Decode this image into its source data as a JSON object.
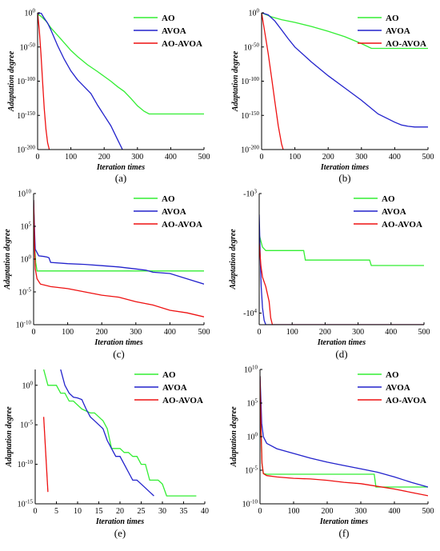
{
  "chart_data": [
    {
      "panel": "a",
      "type": "line",
      "caption": "(a)",
      "xlabel": "Iteration times",
      "ylabel": "Adaptation degree",
      "xlim": [
        0,
        500
      ],
      "ylim": [
        -200,
        0
      ],
      "yscale": "log10",
      "xticks": [
        0,
        100,
        200,
        300,
        400,
        500
      ],
      "yticks": [
        {
          "v": 0,
          "t": "10^0"
        },
        {
          "v": -50,
          "t": "10^-50"
        },
        {
          "v": -100,
          "t": "10^-100"
        },
        {
          "v": -150,
          "t": "10^-150"
        },
        {
          "v": -200,
          "t": "10^-200"
        }
      ],
      "legend_position": "top-right",
      "grid": false,
      "series": [
        {
          "name": "AO",
          "color": "#33ee33",
          "x": [
            0,
            10,
            25,
            40,
            60,
            80,
            100,
            120,
            150,
            180,
            200,
            220,
            240,
            260,
            280,
            300,
            320,
            335,
            500
          ],
          "y": [
            -2,
            -5,
            -12,
            -22,
            -33,
            -44,
            -55,
            -64,
            -76,
            -86,
            -93,
            -100,
            -108,
            -115,
            -125,
            -136,
            -144,
            -148,
            -148
          ]
        },
        {
          "name": "AVOA",
          "color": "#2222cc",
          "x": [
            0,
            10,
            20,
            30,
            40,
            60,
            80,
            100,
            120,
            140,
            160,
            180,
            200,
            220,
            240,
            255
          ],
          "y": [
            -2,
            0,
            -8,
            -15,
            -25,
            -48,
            -68,
            -85,
            -98,
            -108,
            -118,
            -135,
            -150,
            -165,
            -185,
            -200
          ]
        },
        {
          "name": "AO-AVOA",
          "color": "#ee1111",
          "x": [
            0,
            5,
            10,
            15,
            20,
            25,
            30,
            35
          ],
          "y": [
            0,
            -25,
            -60,
            -100,
            -140,
            -170,
            -190,
            -200
          ]
        }
      ]
    },
    {
      "panel": "b",
      "type": "line",
      "caption": "(b)",
      "xlabel": "Iteration times",
      "ylabel": "Adaptation degree",
      "xlim": [
        0,
        500
      ],
      "ylim": [
        -200,
        0
      ],
      "yscale": "log10",
      "xticks": [
        0,
        100,
        200,
        300,
        400,
        500
      ],
      "yticks": [
        {
          "v": 0,
          "t": "10^0"
        },
        {
          "v": -50,
          "t": "10^-50"
        },
        {
          "v": -100,
          "t": "10^-100"
        },
        {
          "v": -150,
          "t": "10^-150"
        },
        {
          "v": -200,
          "t": "10^-200"
        }
      ],
      "legend_position": "top-right",
      "grid": false,
      "series": [
        {
          "name": "AO",
          "color": "#33ee33",
          "x": [
            0,
            30,
            60,
            100,
            150,
            200,
            250,
            300,
            330,
            500
          ],
          "y": [
            0,
            -6,
            -10,
            -14,
            -20,
            -27,
            -35,
            -45,
            -52,
            -52
          ]
        },
        {
          "name": "AVOA",
          "color": "#2222cc",
          "x": [
            0,
            20,
            40,
            60,
            80,
            100,
            150,
            200,
            250,
            300,
            350,
            400,
            420,
            440,
            460,
            500
          ],
          "y": [
            0,
            -3,
            -12,
            -25,
            -38,
            -50,
            -72,
            -92,
            -110,
            -128,
            -148,
            -160,
            -164,
            -166,
            -167,
            -167
          ]
        },
        {
          "name": "AO-AVOA",
          "color": "#ee1111",
          "x": [
            0,
            10,
            20,
            30,
            40,
            50,
            60,
            65
          ],
          "y": [
            0,
            -30,
            -60,
            -95,
            -130,
            -165,
            -192,
            -200
          ]
        }
      ]
    },
    {
      "panel": "c",
      "type": "line",
      "caption": "(c)",
      "xlabel": "Iteration times",
      "ylabel": "Adaptation degree",
      "xlim": [
        0,
        500
      ],
      "ylim": [
        -10,
        10
      ],
      "yscale": "log10",
      "xticks": [
        0,
        100,
        200,
        300,
        400,
        500
      ],
      "yticks": [
        {
          "v": 10,
          "t": "10^10"
        },
        {
          "v": 5,
          "t": "10^5"
        },
        {
          "v": 0,
          "t": "10^0"
        },
        {
          "v": -5,
          "t": "10^-5"
        },
        {
          "v": -10,
          "t": "10^-10"
        }
      ],
      "legend_position": "top-right",
      "grid": false,
      "series": [
        {
          "name": "AO",
          "color": "#33ee33",
          "x": [
            0,
            3,
            6,
            10,
            20,
            500
          ],
          "y": [
            9,
            2,
            -0.5,
            -1.8,
            -1.8,
            -1.8
          ]
        },
        {
          "name": "AVOA",
          "color": "#2222cc",
          "x": [
            0,
            3,
            5,
            10,
            15,
            30,
            40,
            45,
            50,
            100,
            150,
            200,
            250,
            300,
            330,
            350,
            400,
            450,
            500
          ],
          "y": [
            9,
            4,
            1.5,
            1,
            0.5,
            0.4,
            0.3,
            0.2,
            -0.5,
            -0.7,
            -0.8,
            -1,
            -1.2,
            -1.5,
            -1.7,
            -2,
            -2.2,
            -3,
            -3.8
          ]
        },
        {
          "name": "AO-AVOA",
          "color": "#ee1111",
          "x": [
            0,
            3,
            5,
            10,
            20,
            50,
            100,
            150,
            200,
            250,
            300,
            350,
            400,
            450,
            500
          ],
          "y": [
            9,
            1.5,
            -1.5,
            -3,
            -3.8,
            -4.2,
            -4.5,
            -5,
            -5.5,
            -5.8,
            -6.5,
            -7,
            -7.8,
            -8.2,
            -8.8
          ]
        }
      ]
    },
    {
      "panel": "d",
      "type": "line",
      "caption": "(d)",
      "xlabel": "Iteration times",
      "ylabel": "Adaptation degree",
      "xlim": [
        0,
        500
      ],
      "ylim": [
        -1000,
        -12500
      ],
      "yscale": "symlog",
      "xticks": [
        0,
        100,
        200,
        300,
        400,
        500
      ],
      "yticks": [
        {
          "v": -1000,
          "t": "-10^3"
        },
        {
          "v": -10000,
          "t": "-10^4"
        }
      ],
      "legend_position": "top-right",
      "grid": false,
      "series": [
        {
          "name": "AO",
          "color": "#33ee33",
          "x": [
            0,
            5,
            10,
            20,
            135,
            140,
            335,
            340,
            500
          ],
          "y": [
            -2200,
            -2500,
            -2800,
            -3000,
            -3000,
            -3600,
            -3600,
            -4000,
            -4000
          ]
        },
        {
          "name": "AVOA",
          "color": "#2222cc",
          "x": [
            0,
            2,
            4,
            6,
            10,
            15,
            20,
            500
          ],
          "y": [
            -1500,
            -2500,
            -4000,
            -6000,
            -9000,
            -11500,
            -12500,
            -12500
          ]
        },
        {
          "name": "AO-AVOA",
          "color": "#ee1111",
          "x": [
            0,
            5,
            10,
            20,
            30,
            35,
            40,
            500
          ],
          "y": [
            -2600,
            -4000,
            -5000,
            -6000,
            -8000,
            -11000,
            -12500,
            -12500
          ]
        }
      ]
    },
    {
      "panel": "e",
      "type": "line",
      "caption": "(e)",
      "xlabel": "Iteration times",
      "ylabel": "Adaptation degree",
      "xlim": [
        0,
        40
      ],
      "ylim": [
        -15,
        2
      ],
      "yscale": "log10",
      "xticks": [
        0,
        5,
        10,
        15,
        20,
        25,
        30,
        35,
        40
      ],
      "yticks": [
        {
          "v": 0,
          "t": "10^0"
        },
        {
          "v": -5,
          "t": "10^-5"
        },
        {
          "v": -10,
          "t": "10^-10"
        },
        {
          "v": -15,
          "t": "10^-15"
        }
      ],
      "legend_position": "top-right",
      "grid": false,
      "series": [
        {
          "name": "AO",
          "color": "#33ee33",
          "x": [
            2,
            3,
            5,
            6,
            7,
            8,
            9,
            10,
            11,
            13,
            14,
            15,
            16,
            17,
            18,
            20,
            21,
            22,
            23,
            24,
            25,
            26,
            27,
            29,
            30,
            31,
            35,
            38
          ],
          "y": [
            2,
            0,
            0,
            -1,
            -1,
            -2,
            -2,
            -2.5,
            -3,
            -3.5,
            -3.5,
            -4,
            -4.5,
            -5.5,
            -8,
            -8,
            -8.5,
            -8.5,
            -9,
            -9,
            -10,
            -10,
            -12,
            -12,
            -12.5,
            -14,
            -14,
            -14
          ]
        },
        {
          "name": "AVOA",
          "color": "#2222cc",
          "x": [
            6,
            7,
            8,
            9,
            10,
            11,
            12,
            13,
            14,
            15,
            16,
            17,
            18,
            19,
            20,
            21,
            22,
            23,
            24,
            25,
            26,
            27,
            28
          ],
          "y": [
            2,
            0,
            -1,
            -1.5,
            -1.6,
            -1.8,
            -3,
            -4,
            -4.5,
            -5,
            -5.5,
            -7,
            -8,
            -9,
            -9,
            -10,
            -11,
            -12,
            -12,
            -12.5,
            -13,
            -13.5,
            -14
          ]
        },
        {
          "name": "AO-AVOA",
          "color": "#ee1111",
          "x": [
            2,
            3
          ],
          "y": [
            -4,
            -13.5
          ]
        }
      ]
    },
    {
      "panel": "f",
      "type": "line",
      "caption": "(f)",
      "xlabel": "Iteration times",
      "ylabel": "Adaptation degree",
      "xlim": [
        0,
        500
      ],
      "ylim": [
        -10,
        10
      ],
      "yscale": "log10",
      "xticks": [
        0,
        100,
        200,
        300,
        400,
        500
      ],
      "yticks": [
        {
          "v": 10,
          "t": "10^10"
        },
        {
          "v": 5,
          "t": "10^5"
        },
        {
          "v": 0,
          "t": "10^0"
        },
        {
          "v": -5,
          "t": "10^-5"
        },
        {
          "v": -10,
          "t": "10^-10"
        }
      ],
      "legend_position": "top-right",
      "grid": false,
      "series": [
        {
          "name": "AO",
          "color": "#33ee33",
          "x": [
            0,
            3,
            6,
            10,
            20,
            340,
            345,
            500
          ],
          "y": [
            9,
            1,
            -4,
            -5.5,
            -5.6,
            -5.6,
            -7.5,
            -7.5
          ]
        },
        {
          "name": "AVOA",
          "color": "#2222cc",
          "x": [
            0,
            3,
            5,
            10,
            20,
            50,
            100,
            150,
            200,
            250,
            300,
            350,
            400,
            450,
            500
          ],
          "y": [
            9,
            5,
            2,
            0,
            -1,
            -1.8,
            -2.5,
            -3.2,
            -3.8,
            -4.3,
            -4.8,
            -5.3,
            -6,
            -6.8,
            -7.5
          ]
        },
        {
          "name": "AO-AVOA",
          "color": "#ee1111",
          "x": [
            0,
            3,
            6,
            10,
            20,
            50,
            100,
            150,
            200,
            250,
            300,
            350,
            400,
            450,
            500
          ],
          "y": [
            9,
            1,
            -4,
            -5.5,
            -5.8,
            -6,
            -6.2,
            -6.3,
            -6.5,
            -6.8,
            -7,
            -7.4,
            -7.8,
            -8.3,
            -8.8
          ]
        }
      ]
    }
  ]
}
